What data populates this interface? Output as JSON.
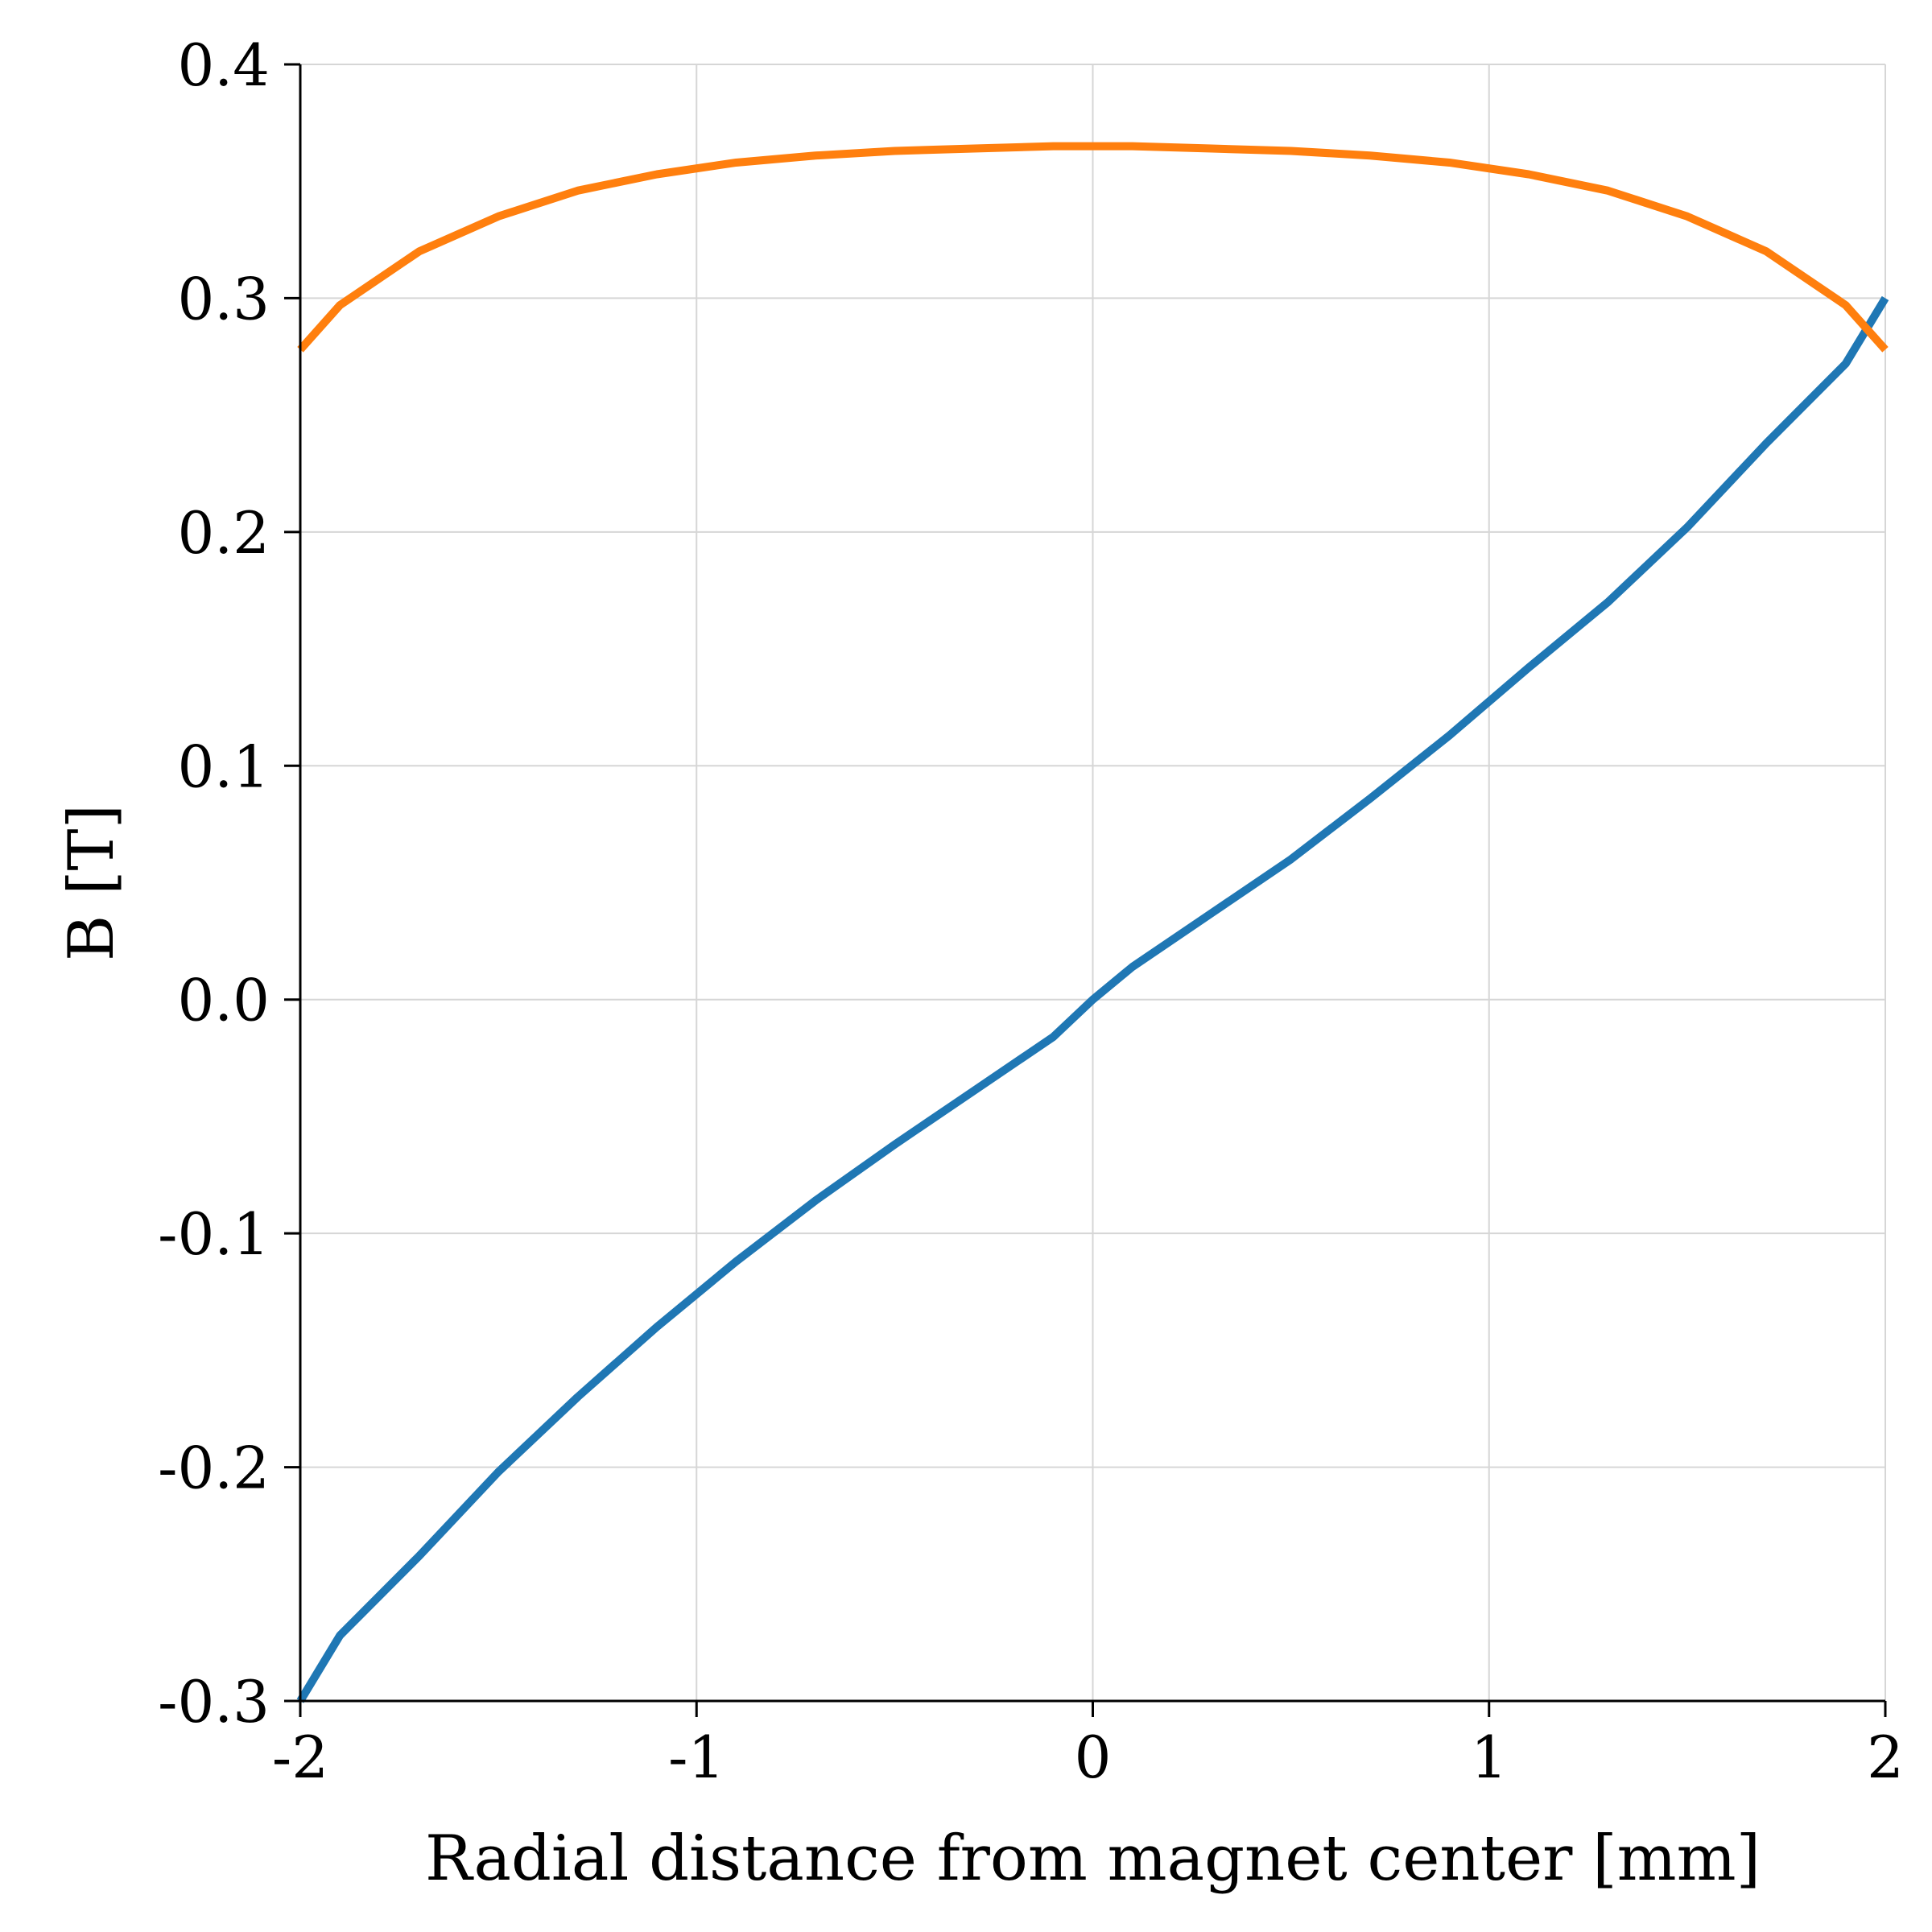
{
  "chart_data": {
    "type": "line",
    "xlabel": "Radial distance from magnet center [mm]",
    "ylabel": "B [T]",
    "xlim": [
      -2,
      2
    ],
    "ylim": [
      -0.3,
      0.4
    ],
    "xticks": [
      -2,
      -1,
      0,
      1,
      2
    ],
    "xtick_labels": [
      "-2",
      "-1",
      "0",
      "1",
      "2"
    ],
    "yticks": [
      -0.3,
      -0.2,
      -0.1,
      0.0,
      0.1,
      0.2,
      0.3,
      0.4
    ],
    "ytick_labels": [
      "-0.3",
      "-0.2",
      "-0.1",
      "0.0",
      "0.1",
      "0.2",
      "0.3",
      "0.4"
    ],
    "grid": true,
    "legend": "none",
    "series": [
      {
        "color": "#1f77b4",
        "x": [
          -2.0,
          -1.9,
          -1.7,
          -1.5,
          -1.3,
          -1.1,
          -0.9,
          -0.7,
          -0.5,
          -0.3,
          -0.1,
          0.0,
          0.1,
          0.3,
          0.5,
          0.7,
          0.9,
          1.1,
          1.3,
          1.5,
          1.7,
          1.9,
          2.0
        ],
        "values": [
          -0.3,
          -0.272,
          -0.238,
          -0.202,
          -0.17,
          -0.14,
          -0.112,
          -0.086,
          -0.062,
          -0.039,
          -0.016,
          0.0,
          0.014,
          0.037,
          0.06,
          0.086,
          0.113,
          0.142,
          0.17,
          0.202,
          0.238,
          0.272,
          0.3
        ]
      },
      {
        "color": "#ff7f0e",
        "x": [
          -2.0,
          -1.9,
          -1.7,
          -1.5,
          -1.3,
          -1.1,
          -0.9,
          -0.7,
          -0.5,
          -0.3,
          -0.1,
          0.0,
          0.1,
          0.3,
          0.5,
          0.7,
          0.9,
          1.1,
          1.3,
          1.5,
          1.7,
          1.9,
          2.0
        ],
        "values": [
          0.278,
          0.297,
          0.32,
          0.335,
          0.346,
          0.353,
          0.358,
          0.361,
          0.363,
          0.364,
          0.365,
          0.365,
          0.365,
          0.364,
          0.363,
          0.361,
          0.358,
          0.353,
          0.346,
          0.335,
          0.32,
          0.297,
          0.278
        ]
      }
    ]
  }
}
